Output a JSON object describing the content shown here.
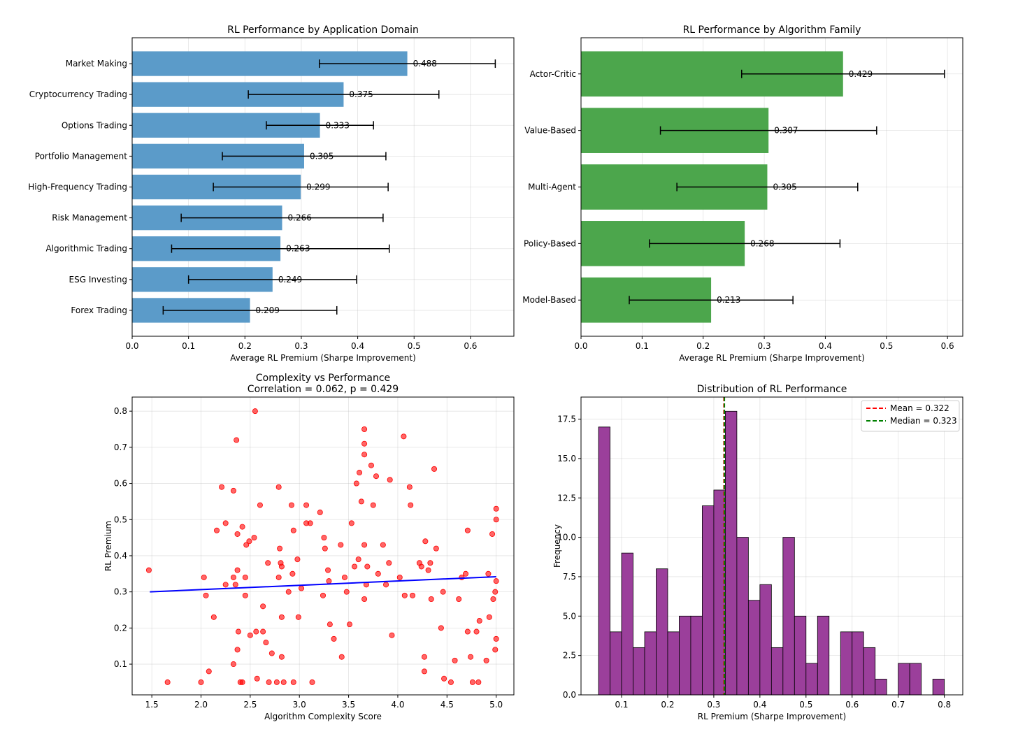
{
  "chart_data": [
    {
      "type": "bar",
      "orientation": "horizontal",
      "title": "RL Performance by Application Domain",
      "xlabel": "Average RL Premium (Sharpe Improvement)",
      "ylabel": "",
      "xlim": [
        0,
        0.677
      ],
      "xticks": [
        "0.0",
        "0.1",
        "0.2",
        "0.3",
        "0.4",
        "0.5",
        "0.6"
      ],
      "grid": true,
      "bar_color": "#5b9bc9",
      "categories": [
        "Market Making",
        "Cryptocurrency Trading",
        "Options Trading",
        "Portfolio Management",
        "High-Frequency Trading",
        "Risk Management",
        "Algorithmic Trading",
        "ESG Investing",
        "Forex Trading"
      ],
      "values": [
        0.488,
        0.375,
        0.333,
        0.305,
        0.299,
        0.266,
        0.263,
        0.249,
        0.209
      ],
      "labels": [
        "0.488",
        "0.375",
        "0.333",
        "0.305",
        "0.299",
        "0.266",
        "0.263",
        "0.249",
        "0.209"
      ],
      "errors": [
        0.156,
        0.169,
        0.095,
        0.145,
        0.155,
        0.179,
        0.193,
        0.149,
        0.154
      ]
    },
    {
      "type": "bar",
      "orientation": "horizontal",
      "title": "RL Performance by Algorithm Family",
      "xlabel": "Average RL Premium (Sharpe Improvement)",
      "ylabel": "",
      "xlim": [
        0,
        0.625
      ],
      "xticks": [
        "0.0",
        "0.1",
        "0.2",
        "0.3",
        "0.4",
        "0.5",
        "0.6"
      ],
      "grid": true,
      "bar_color": "#4ca64c",
      "categories": [
        "Actor-Critic",
        "Value-Based",
        "Multi-Agent",
        "Policy-Based",
        "Model-Based"
      ],
      "values": [
        0.429,
        0.307,
        0.305,
        0.268,
        0.213
      ],
      "labels": [
        "0.429",
        "0.307",
        "0.305",
        "0.268",
        "0.213"
      ],
      "errors": [
        0.166,
        0.177,
        0.148,
        0.156,
        0.134
      ]
    },
    {
      "type": "scatter",
      "title": "Complexity vs Performance",
      "subtitle": "Correlation = 0.062, p = 0.429",
      "xlabel": "Algorithm Complexity Score",
      "ylabel": "RL Premium",
      "xlim": [
        1.3,
        5.18
      ],
      "ylim": [
        0.015,
        0.839
      ],
      "xticks": [
        "1.5",
        "2.0",
        "2.5",
        "3.0",
        "3.5",
        "4.0",
        "4.5",
        "5.0"
      ],
      "yticks": [
        "0.1",
        "0.2",
        "0.3",
        "0.4",
        "0.5",
        "0.6",
        "0.7",
        "0.8"
      ],
      "grid": true,
      "point_color": "#ff0000",
      "trend_color": "#0000ff",
      "trend_line": [
        [
          1.48,
          0.3
        ],
        [
          5.0,
          0.342
        ]
      ],
      "points": [
        [
          1.47,
          0.36
        ],
        [
          1.66,
          0.05
        ],
        [
          2.0,
          0.05
        ],
        [
          2.03,
          0.34
        ],
        [
          2.05,
          0.29
        ],
        [
          2.08,
          0.08
        ],
        [
          2.13,
          0.23
        ],
        [
          2.16,
          0.47
        ],
        [
          2.21,
          0.59
        ],
        [
          2.25,
          0.49
        ],
        [
          2.25,
          0.32
        ],
        [
          2.33,
          0.1
        ],
        [
          2.33,
          0.34
        ],
        [
          2.33,
          0.58
        ],
        [
          2.36,
          0.72
        ],
        [
          2.35,
          0.32
        ],
        [
          2.37,
          0.36
        ],
        [
          2.38,
          0.19
        ],
        [
          2.37,
          0.14
        ],
        [
          2.4,
          0.05
        ],
        [
          2.42,
          0.05
        ],
        [
          2.42,
          0.48
        ],
        [
          2.37,
          0.46
        ],
        [
          2.45,
          0.34
        ],
        [
          2.45,
          0.29
        ],
        [
          2.46,
          0.43
        ],
        [
          2.49,
          0.44
        ],
        [
          2.55,
          0.8
        ],
        [
          2.5,
          0.18
        ],
        [
          2.54,
          0.45
        ],
        [
          2.56,
          0.19
        ],
        [
          2.57,
          0.06
        ],
        [
          2.6,
          0.54
        ],
        [
          2.63,
          0.19
        ],
        [
          2.63,
          0.26
        ],
        [
          2.66,
          0.16
        ],
        [
          2.68,
          0.38
        ],
        [
          2.69,
          0.05
        ],
        [
          2.72,
          0.13
        ],
        [
          2.77,
          0.05
        ],
        [
          2.79,
          0.59
        ],
        [
          2.79,
          0.34
        ],
        [
          2.8,
          0.42
        ],
        [
          2.81,
          0.38
        ],
        [
          2.82,
          0.37
        ],
        [
          2.82,
          0.12
        ],
        [
          2.82,
          0.23
        ],
        [
          2.84,
          0.05
        ],
        [
          2.89,
          0.3
        ],
        [
          2.92,
          0.54
        ],
        [
          2.93,
          0.35
        ],
        [
          2.94,
          0.47
        ],
        [
          2.94,
          0.05
        ],
        [
          2.98,
          0.39
        ],
        [
          2.99,
          0.23
        ],
        [
          3.02,
          0.31
        ],
        [
          3.07,
          0.49
        ],
        [
          3.07,
          0.54
        ],
        [
          3.11,
          0.49
        ],
        [
          3.13,
          0.05
        ],
        [
          3.21,
          0.52
        ],
        [
          3.24,
          0.29
        ],
        [
          3.25,
          0.45
        ],
        [
          3.26,
          0.42
        ],
        [
          3.29,
          0.36
        ],
        [
          3.3,
          0.33
        ],
        [
          3.35,
          0.17
        ],
        [
          3.31,
          0.21
        ],
        [
          3.42,
          0.43
        ],
        [
          3.43,
          0.12
        ],
        [
          3.46,
          0.34
        ],
        [
          3.48,
          0.3
        ],
        [
          3.51,
          0.21
        ],
        [
          3.53,
          0.49
        ],
        [
          3.56,
          0.37
        ],
        [
          3.58,
          0.6
        ],
        [
          3.6,
          0.39
        ],
        [
          3.61,
          0.63
        ],
        [
          3.63,
          0.55
        ],
        [
          3.66,
          0.68
        ],
        [
          3.66,
          0.75
        ],
        [
          3.66,
          0.71
        ],
        [
          3.66,
          0.28
        ],
        [
          3.69,
          0.37
        ],
        [
          3.66,
          0.43
        ],
        [
          3.68,
          0.32
        ],
        [
          3.73,
          0.65
        ],
        [
          3.75,
          0.54
        ],
        [
          3.78,
          0.62
        ],
        [
          3.8,
          0.35
        ],
        [
          3.85,
          0.43
        ],
        [
          3.88,
          0.32
        ],
        [
          3.91,
          0.38
        ],
        [
          3.92,
          0.61
        ],
        [
          3.94,
          0.18
        ],
        [
          4.02,
          0.34
        ],
        [
          4.06,
          0.73
        ],
        [
          4.07,
          0.29
        ],
        [
          4.12,
          0.59
        ],
        [
          4.13,
          0.54
        ],
        [
          4.15,
          0.29
        ],
        [
          4.22,
          0.38
        ],
        [
          4.24,
          0.37
        ],
        [
          4.27,
          0.12
        ],
        [
          4.27,
          0.08
        ],
        [
          4.28,
          0.44
        ],
        [
          4.31,
          0.36
        ],
        [
          4.33,
          0.38
        ],
        [
          4.34,
          0.28
        ],
        [
          4.37,
          0.64
        ],
        [
          4.39,
          0.42
        ],
        [
          4.44,
          0.2
        ],
        [
          4.46,
          0.3
        ],
        [
          4.47,
          0.06
        ],
        [
          4.54,
          0.05
        ],
        [
          4.58,
          0.11
        ],
        [
          4.62,
          0.28
        ],
        [
          4.65,
          0.34
        ],
        [
          4.69,
          0.35
        ],
        [
          4.71,
          0.19
        ],
        [
          4.71,
          0.47
        ],
        [
          4.74,
          0.12
        ],
        [
          4.76,
          0.05
        ],
        [
          4.8,
          0.19
        ],
        [
          4.83,
          0.22
        ],
        [
          4.82,
          0.05
        ],
        [
          4.9,
          0.11
        ],
        [
          4.92,
          0.35
        ],
        [
          4.93,
          0.23
        ],
        [
          4.96,
          0.46
        ],
        [
          5.0,
          0.53
        ],
        [
          5.0,
          0.5
        ],
        [
          5.0,
          0.33
        ],
        [
          5.0,
          0.17
        ],
        [
          4.99,
          0.14
        ],
        [
          4.99,
          0.3
        ],
        [
          4.97,
          0.28
        ]
      ]
    },
    {
      "type": "histogram",
      "title": "Distribution of RL Performance",
      "xlabel": "RL Premium (Sharpe Improvement)",
      "ylabel": "Frequency",
      "xlim": [
        0.012,
        0.84
      ],
      "ylim": [
        0,
        18.9
      ],
      "xticks": [
        "0.1",
        "0.2",
        "0.3",
        "0.4",
        "0.5",
        "0.6",
        "0.7",
        "0.8"
      ],
      "yticks": [
        "0.0",
        "2.5",
        "5.0",
        "7.5",
        "10.0",
        "12.5",
        "15.0",
        "17.5"
      ],
      "grid": true,
      "bar_color": "#9b3f9b",
      "bin_start": 0.05,
      "bin_width": 0.025,
      "counts": [
        17,
        4,
        9,
        3,
        4,
        8,
        4,
        5,
        5,
        12,
        13,
        18,
        10,
        6,
        7,
        3,
        10,
        5,
        2,
        5,
        0,
        4,
        4,
        3,
        1,
        0,
        2,
        2,
        0,
        1
      ],
      "vlines": [
        {
          "label": "Mean = 0.322",
          "value": 0.322,
          "color": "#ff0000"
        },
        {
          "label": "Median = 0.323",
          "value": 0.323,
          "color": "#008000"
        }
      ],
      "legend_position": "top-right"
    }
  ]
}
